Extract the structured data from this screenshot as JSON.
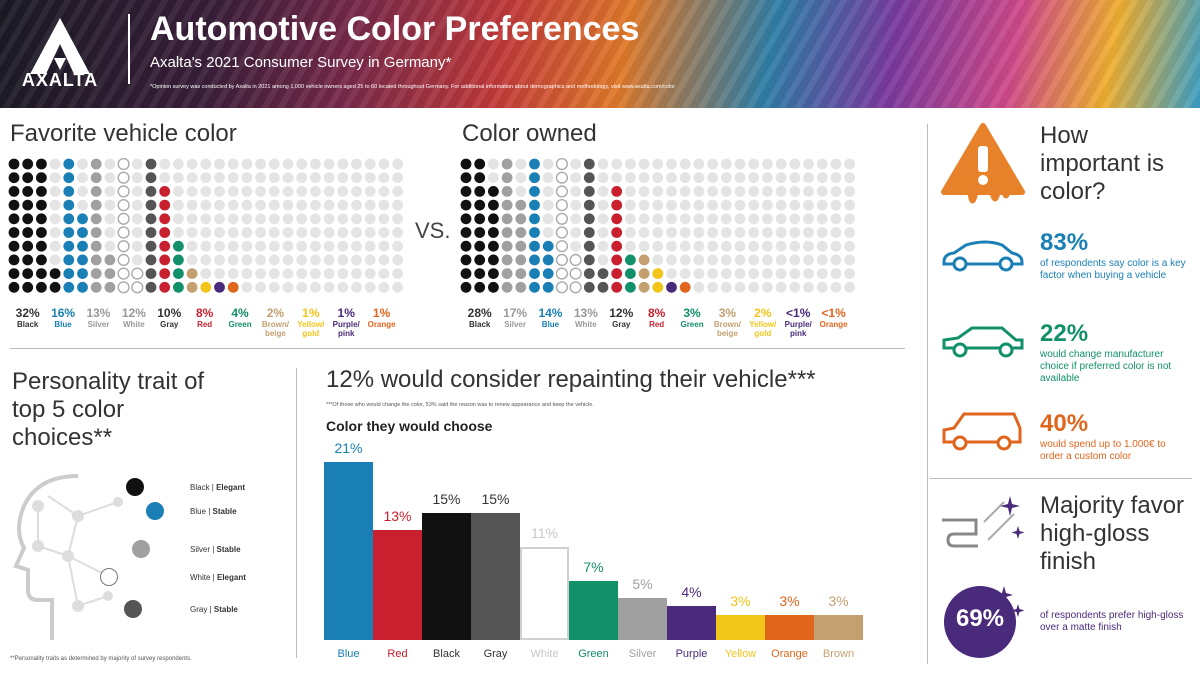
{
  "header": {
    "brand": "AXALTA",
    "title": "Automotive Color Preferences",
    "subtitle": "Axalta's 2021 Consumer Survey in Germany*",
    "note": "*Opinion survey was conducted by Axalta in 2021 among 1,000 vehicle owners aged 25 to 60 located throughout Germany. For additional information about demographics and methodology, visit www.axalta.com/color"
  },
  "favorite": {
    "title": "Favorite vehicle color",
    "items": [
      {
        "pct": "32%",
        "label": "Black",
        "value": 32,
        "color": "#111111",
        "ring": false
      },
      {
        "pct": "16%",
        "label": "Blue",
        "value": 16,
        "color": "#1a7fb5",
        "ring": false
      },
      {
        "pct": "13%",
        "label": "Silver",
        "value": 13,
        "color": "#a0a0a0",
        "ring": false
      },
      {
        "pct": "12%",
        "label": "White",
        "value": 12,
        "color": "#c0c0c0",
        "ring": true
      },
      {
        "pct": "10%",
        "label": "Gray",
        "value": 10,
        "color": "#555555",
        "ring": false
      },
      {
        "pct": "8%",
        "label": "Red",
        "value": 8,
        "color": "#c8202f",
        "ring": false
      },
      {
        "pct": "4%",
        "label": "Green",
        "value": 4,
        "color": "#12906a",
        "ring": false
      },
      {
        "pct": "2%",
        "label": "Brown/ beige",
        "value": 2,
        "color": "#c4a070",
        "ring": false
      },
      {
        "pct": "1%",
        "label": "Yellow/ gold",
        "value": 1,
        "color": "#f2c51a",
        "ring": false
      },
      {
        "pct": "1%",
        "label": "Purple/ pink",
        "value": 1,
        "color": "#4a2a7a",
        "ring": false
      },
      {
        "pct": "1%",
        "label": "Orange",
        "value": 1,
        "color": "#e0661e",
        "ring": false
      }
    ]
  },
  "vs": "VS.",
  "owned": {
    "title": "Color owned",
    "items": [
      {
        "pct": "28%",
        "label": "Black",
        "value": 28,
        "color": "#111111",
        "ring": false
      },
      {
        "pct": "17%",
        "label": "Silver",
        "value": 17,
        "color": "#a0a0a0",
        "ring": false
      },
      {
        "pct": "14%",
        "label": "Blue",
        "value": 14,
        "color": "#1a7fb5",
        "ring": false
      },
      {
        "pct": "13%",
        "label": "White",
        "value": 13,
        "color": "#c0c0c0",
        "ring": true
      },
      {
        "pct": "12%",
        "label": "Gray",
        "value": 12,
        "color": "#555555",
        "ring": false
      },
      {
        "pct": "8%",
        "label": "Red",
        "value": 8,
        "color": "#c8202f",
        "ring": false
      },
      {
        "pct": "3%",
        "label": "Green",
        "value": 3,
        "color": "#12906a",
        "ring": false
      },
      {
        "pct": "3%",
        "label": "Brown/ beige",
        "value": 3,
        "color": "#c4a070",
        "ring": false
      },
      {
        "pct": "2%",
        "label": "Yellow/ gold",
        "value": 2,
        "color": "#f2c51a",
        "ring": false
      },
      {
        "pct": "<1%",
        "label": "Purple/ pink",
        "value": 0.5,
        "color": "#4a2a7a",
        "ring": false
      },
      {
        "pct": "<1%",
        "label": "Orange",
        "value": 0.5,
        "color": "#e0661e",
        "ring": false
      }
    ]
  },
  "importance": {
    "title": "How important is color?",
    "stats": [
      {
        "num": "83%",
        "text": "of respondents say color is a key factor when buying a vehicle",
        "color": "#1a7fb5"
      },
      {
        "num": "22%",
        "text": "would change manufacturer choice if preferred color is not available",
        "color": "#12906a"
      },
      {
        "num": "40%",
        "text": "would spend up to 1.000€ to order a custom color",
        "color": "#e0661e"
      }
    ]
  },
  "gloss": {
    "title": "Majority favor high-gloss finish",
    "num": "69%",
    "text": "of respondents prefer high-gloss over a matte finish",
    "color": "#4a2a7a"
  },
  "personality": {
    "title": "Personality trait of top 5 color choices**",
    "traits": [
      {
        "color": "Black",
        "trait": "Elegant",
        "hex": "#111111",
        "ring": false
      },
      {
        "color": "Blue",
        "trait": "Stable",
        "hex": "#1a7fb5",
        "ring": false
      },
      {
        "color": "Silver",
        "trait": "Stable",
        "hex": "#a0a0a0",
        "ring": false
      },
      {
        "color": "White",
        "trait": "Elegant",
        "hex": "#ffffff",
        "ring": true
      },
      {
        "color": "Gray",
        "trait": "Stable",
        "hex": "#555555",
        "ring": false
      }
    ],
    "footnote": "**Personality traits as determined by majority of survey respondents."
  },
  "repaint": {
    "title": "12% would consider repainting their vehicle***",
    "note": "***Of those who would change the color, 53% said the reason was to renew appearance and keep the vehicle.",
    "subtitle": "Color they would choose"
  },
  "chart_data": {
    "type": "bar",
    "title": "Color they would choose",
    "categories": [
      "Blue",
      "Red",
      "Black",
      "Gray",
      "White",
      "Green",
      "Silver",
      "Purple",
      "Yellow",
      "Orange",
      "Brown"
    ],
    "values": [
      21,
      13,
      15,
      15,
      11,
      7,
      5,
      4,
      3,
      3,
      3
    ],
    "value_labels": [
      "21%",
      "13%",
      "15%",
      "15%",
      "11%",
      "7%",
      "5%",
      "4%",
      "3%",
      "3%",
      "3%"
    ],
    "colors": [
      "#1a7fb5",
      "#c8202f",
      "#111111",
      "#555555",
      "#ffffff",
      "#12906a",
      "#a0a0a0",
      "#4a2a7a",
      "#f2c51a",
      "#e0661e",
      "#c4a070"
    ],
    "ylim": [
      0,
      21
    ]
  }
}
